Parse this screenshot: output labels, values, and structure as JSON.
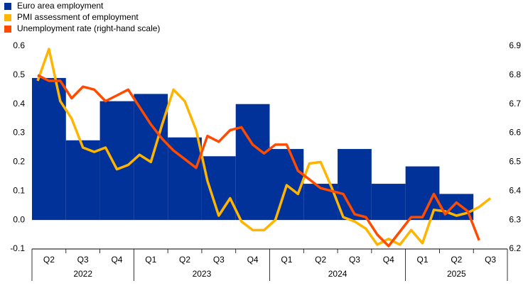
{
  "chart_data": {
    "type": "bar-line",
    "groups": [
      {
        "label": "2022",
        "categories": [
          "Q2",
          "Q3",
          "Q4"
        ]
      },
      {
        "label": "2023",
        "categories": [
          "Q1",
          "Q2",
          "Q3",
          "Q4"
        ]
      },
      {
        "label": "2024",
        "categories": [
          "Q1",
          "Q2",
          "Q3",
          "Q4"
        ]
      },
      {
        "label": "2025",
        "categories": [
          "Q1",
          "Q2",
          "Q3"
        ]
      }
    ],
    "ylim": [
      -0.1,
      0.6
    ],
    "yticks": [
      {
        "value": -0.1,
        "label": "-0.1"
      },
      {
        "value": 0,
        "label": "0.0"
      },
      0.1,
      0.2,
      0.3,
      0.4,
      0.5,
      0.6
    ],
    "y2lim": [
      6.2,
      6.9
    ],
    "y2ticks": [
      6.2,
      6.3,
      6.4,
      6.5,
      6.6,
      6.7,
      6.8,
      6.9
    ],
    "series": [
      {
        "name": "Euro area employment",
        "type": "bar",
        "color": "#003299",
        "values": [
          0.49,
          0.275,
          0.41,
          0.435,
          0.285,
          0.22,
          0.4,
          0.245,
          0.125,
          0.245,
          0.125,
          0.185,
          0.09,
          null
        ]
      },
      {
        "name": "PMI assessment of employment",
        "type": "line",
        "color": "#ffb400",
        "values": [
          0.48,
          0.59,
          0.41,
          0.35,
          0.25,
          0.235,
          0.25,
          0.175,
          0.19,
          0.225,
          0.2,
          0.33,
          0.45,
          0.41,
          0.31,
          0.135,
          0.015,
          0.075,
          -0.005,
          -0.035,
          -0.035,
          0.0,
          0.12,
          0.09,
          0.195,
          0.2,
          0.11,
          0.01,
          -0.005,
          -0.03,
          -0.085,
          -0.065,
          -0.085,
          -0.035,
          -0.08,
          0.035,
          0.03,
          0.015,
          0.025,
          0.045,
          0.075
        ]
      },
      {
        "name": "Unemployment rate (right-hand scale)",
        "type": "line",
        "axis": "y2",
        "color": "#ff4b00",
        "values": [
          6.8,
          6.78,
          6.78,
          6.72,
          6.76,
          6.75,
          6.71,
          6.73,
          6.75,
          6.69,
          6.63,
          6.58,
          6.54,
          6.51,
          6.48,
          6.59,
          6.57,
          6.61,
          6.62,
          6.56,
          6.53,
          6.56,
          6.56,
          6.47,
          6.44,
          6.41,
          6.4,
          6.39,
          6.32,
          6.31,
          6.25,
          6.21,
          6.26,
          6.31,
          6.31,
          6.39,
          6.32,
          6.36,
          6.33,
          6.23
        ]
      }
    ]
  }
}
